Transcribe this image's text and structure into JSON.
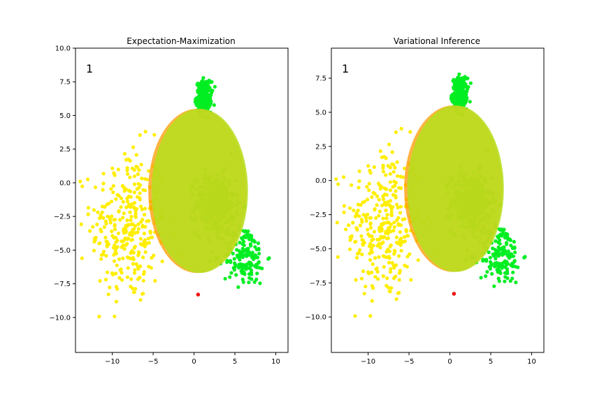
{
  "colors": {
    "yellow": "#ffee00",
    "green": "#00ee22",
    "red": "#ee1111",
    "ellipse_fill": "#b7de1e",
    "ellipse_edge": "#ff9900"
  },
  "chart_data": [
    {
      "type": "scatter",
      "title": "Expectation-Maximization",
      "frame_label": "1",
      "xlim": [
        -14.5,
        11.5
      ],
      "ylim": [
        -12.6,
        10.0
      ],
      "xticks": [
        -10,
        -5,
        0,
        5,
        10
      ],
      "yticks": [
        10.0,
        7.5,
        5.0,
        2.5,
        0.0,
        -2.5,
        -5.0,
        -7.5,
        -10.0
      ],
      "xtick_labels": [
        "−10",
        "−5",
        "0",
        "5",
        "10"
      ],
      "ytick_labels": [
        "10.0",
        "7.5",
        "5.0",
        "2.5",
        "0.0",
        "−2.5",
        "−5.0",
        "−7.5",
        "−10.0"
      ],
      "clusters": [
        {
          "color": "yellow",
          "cx": -8.0,
          "cy": -3.2,
          "sx": 2.3,
          "sy": 2.9,
          "n": 320
        },
        {
          "color": "green",
          "cx": 1.2,
          "cy": 6.4,
          "sx": 0.45,
          "sy": 0.55,
          "n": 240
        },
        {
          "color": "green",
          "cx": 2.6,
          "cy": -1.6,
          "sx": 1.2,
          "sy": 1.1,
          "n": 380
        },
        {
          "color": "green",
          "cx": 6.2,
          "cy": -5.4,
          "sx": 1.3,
          "sy": 1.1,
          "n": 170
        }
      ],
      "outlier": {
        "x": 0.5,
        "y": -8.3,
        "color": "red"
      },
      "ellipses": [
        {
          "cx": 0.4,
          "cy": -0.6,
          "rx": 6.0,
          "ry": 6.1,
          "color": "ellipse_edge"
        },
        {
          "cx": 0.7,
          "cy": -0.6,
          "rx": 5.9,
          "ry": 6.1,
          "color": "ellipse_fill"
        }
      ]
    },
    {
      "type": "scatter",
      "title": "Variational Inference",
      "frame_label": "1",
      "xlim": [
        -14.5,
        11.5
      ],
      "ylim": [
        -12.6,
        9.7
      ],
      "xticks": [
        -10,
        -5,
        0,
        5,
        10
      ],
      "yticks": [
        7.5,
        5.0,
        2.5,
        0.0,
        -2.5,
        -5.0,
        -7.5,
        -10.0
      ],
      "xtick_labels": [
        "−10",
        "−5",
        "0",
        "5",
        "10"
      ],
      "ytick_labels": [
        "7.5",
        "5.0",
        "2.5",
        "0.0",
        "−2.5",
        "−5.0",
        "−7.5",
        "−10.0"
      ],
      "clusters": [
        {
          "color": "yellow",
          "cx": -8.0,
          "cy": -3.2,
          "sx": 2.3,
          "sy": 2.9,
          "n": 320
        },
        {
          "color": "green",
          "cx": 1.2,
          "cy": 6.4,
          "sx": 0.45,
          "sy": 0.55,
          "n": 240
        },
        {
          "color": "green",
          "cx": 2.6,
          "cy": -1.6,
          "sx": 1.2,
          "sy": 1.1,
          "n": 380
        },
        {
          "color": "green",
          "cx": 6.2,
          "cy": -5.4,
          "sx": 1.3,
          "sy": 1.1,
          "n": 170
        }
      ],
      "outlier": {
        "x": 0.5,
        "y": -8.3,
        "color": "red"
      },
      "ellipses": [
        {
          "cx": 0.4,
          "cy": -0.6,
          "rx": 6.0,
          "ry": 6.1,
          "color": "ellipse_edge"
        },
        {
          "cx": 0.7,
          "cy": -0.6,
          "rx": 5.9,
          "ry": 6.1,
          "color": "ellipse_fill"
        }
      ]
    }
  ]
}
